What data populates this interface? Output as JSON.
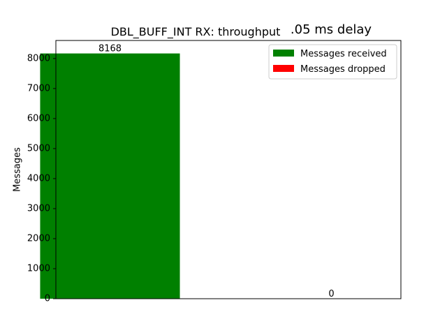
{
  "chart_data": {
    "type": "bar",
    "title": "DBL_BUFF_INT RX: throughput",
    "subtitle": ".05 ms delay",
    "xlabel": "",
    "ylabel": "Messages",
    "ylim": [
      0,
      8600
    ],
    "yticks": [
      0,
      1000,
      2000,
      3000,
      4000,
      5000,
      6000,
      7000,
      8000
    ],
    "grid": false,
    "legend_position": "top-right",
    "series": [
      {
        "name": "Messages received",
        "color": "#008000",
        "value": 8168,
        "data_label": "8168"
      },
      {
        "name": "Messages dropped",
        "color": "#ff0000",
        "value": 0,
        "data_label": "0"
      }
    ]
  }
}
